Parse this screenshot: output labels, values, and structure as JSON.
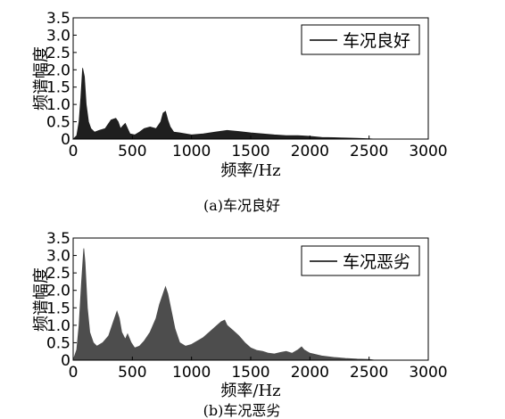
{
  "chart_data": [
    {
      "type": "area",
      "title": "",
      "xlabel": "频率/Hz",
      "ylabel": "频谱幅度",
      "xlim": [
        0,
        3000
      ],
      "ylim": [
        0,
        3.5
      ],
      "xticks": [
        "0",
        "500",
        "1000",
        "1500",
        "2000",
        "2500",
        "3000"
      ],
      "yticks": [
        "0",
        "0.5",
        "1.0",
        "1.5",
        "2.0",
        "2.5",
        "3.0",
        "3.5"
      ],
      "legend": "top-right",
      "grid": false,
      "caption": "(a)车况良好",
      "fill_color": "#1f1f1f",
      "series": [
        {
          "name": "车况良好",
          "x": [
            0,
            30,
            50,
            65,
            80,
            95,
            110,
            130,
            150,
            180,
            220,
            270,
            320,
            360,
            380,
            400,
            420,
            440,
            460,
            480,
            520,
            560,
            600,
            650,
            700,
            740,
            760,
            780,
            800,
            820,
            850,
            900,
            950,
            1000,
            1100,
            1200,
            1300,
            1400,
            1500,
            1600,
            1700,
            1800,
            1900,
            2000,
            2100,
            2200,
            2300,
            2400,
            2500,
            2550,
            2600,
            3000
          ],
          "y": [
            0,
            0.1,
            0.5,
            1.2,
            2.05,
            1.8,
            1.0,
            0.5,
            0.3,
            0.2,
            0.25,
            0.3,
            0.55,
            0.6,
            0.5,
            0.3,
            0.38,
            0.45,
            0.3,
            0.15,
            0.12,
            0.2,
            0.3,
            0.35,
            0.3,
            0.5,
            0.75,
            0.8,
            0.55,
            0.35,
            0.2,
            0.18,
            0.15,
            0.12,
            0.15,
            0.2,
            0.25,
            0.22,
            0.18,
            0.15,
            0.12,
            0.1,
            0.1,
            0.08,
            0.05,
            0.04,
            0.03,
            0.02,
            0.01,
            0.0,
            0.0,
            0.0
          ]
        }
      ]
    },
    {
      "type": "area",
      "title": "",
      "xlabel": "频率/Hz",
      "ylabel": "频谱幅度",
      "xlim": [
        0,
        3000
      ],
      "ylim": [
        0,
        3.5
      ],
      "xticks": [
        "0",
        "500",
        "1000",
        "1500",
        "2000",
        "2500",
        "3000"
      ],
      "yticks": [
        "0",
        "0.5",
        "1.0",
        "1.5",
        "2.0",
        "2.5",
        "3.0",
        "3.5"
      ],
      "legend": "top-right",
      "grid": false,
      "caption": "(b)车况恶劣",
      "fill_color": "#4d4d4d",
      "series": [
        {
          "name": "车况恶劣",
          "x": [
            0,
            30,
            50,
            70,
            90,
            100,
            120,
            140,
            170,
            200,
            250,
            300,
            340,
            370,
            390,
            410,
            440,
            460,
            490,
            520,
            560,
            600,
            650,
            700,
            730,
            760,
            780,
            800,
            830,
            860,
            900,
            950,
            1000,
            1050,
            1100,
            1150,
            1200,
            1250,
            1280,
            1300,
            1350,
            1400,
            1450,
            1500,
            1550,
            1600,
            1650,
            1700,
            1750,
            1800,
            1850,
            1900,
            1930,
            1950,
            2000,
            2100,
            2200,
            2300,
            2400,
            2500,
            2550,
            2600,
            3000
          ],
          "y": [
            0,
            0.3,
            1.0,
            2.2,
            3.2,
            2.8,
            1.5,
            0.8,
            0.5,
            0.4,
            0.5,
            0.7,
            1.1,
            1.4,
            1.2,
            0.8,
            0.6,
            0.75,
            0.5,
            0.35,
            0.4,
            0.55,
            0.8,
            1.2,
            1.6,
            1.9,
            2.1,
            1.9,
            1.4,
            0.9,
            0.5,
            0.4,
            0.45,
            0.55,
            0.65,
            0.8,
            0.95,
            1.1,
            1.15,
            1.0,
            0.85,
            0.7,
            0.5,
            0.35,
            0.28,
            0.25,
            0.2,
            0.18,
            0.22,
            0.25,
            0.2,
            0.3,
            0.38,
            0.3,
            0.2,
            0.12,
            0.08,
            0.05,
            0.03,
            0.02,
            0.0,
            0.0,
            0.0
          ]
        }
      ]
    }
  ]
}
